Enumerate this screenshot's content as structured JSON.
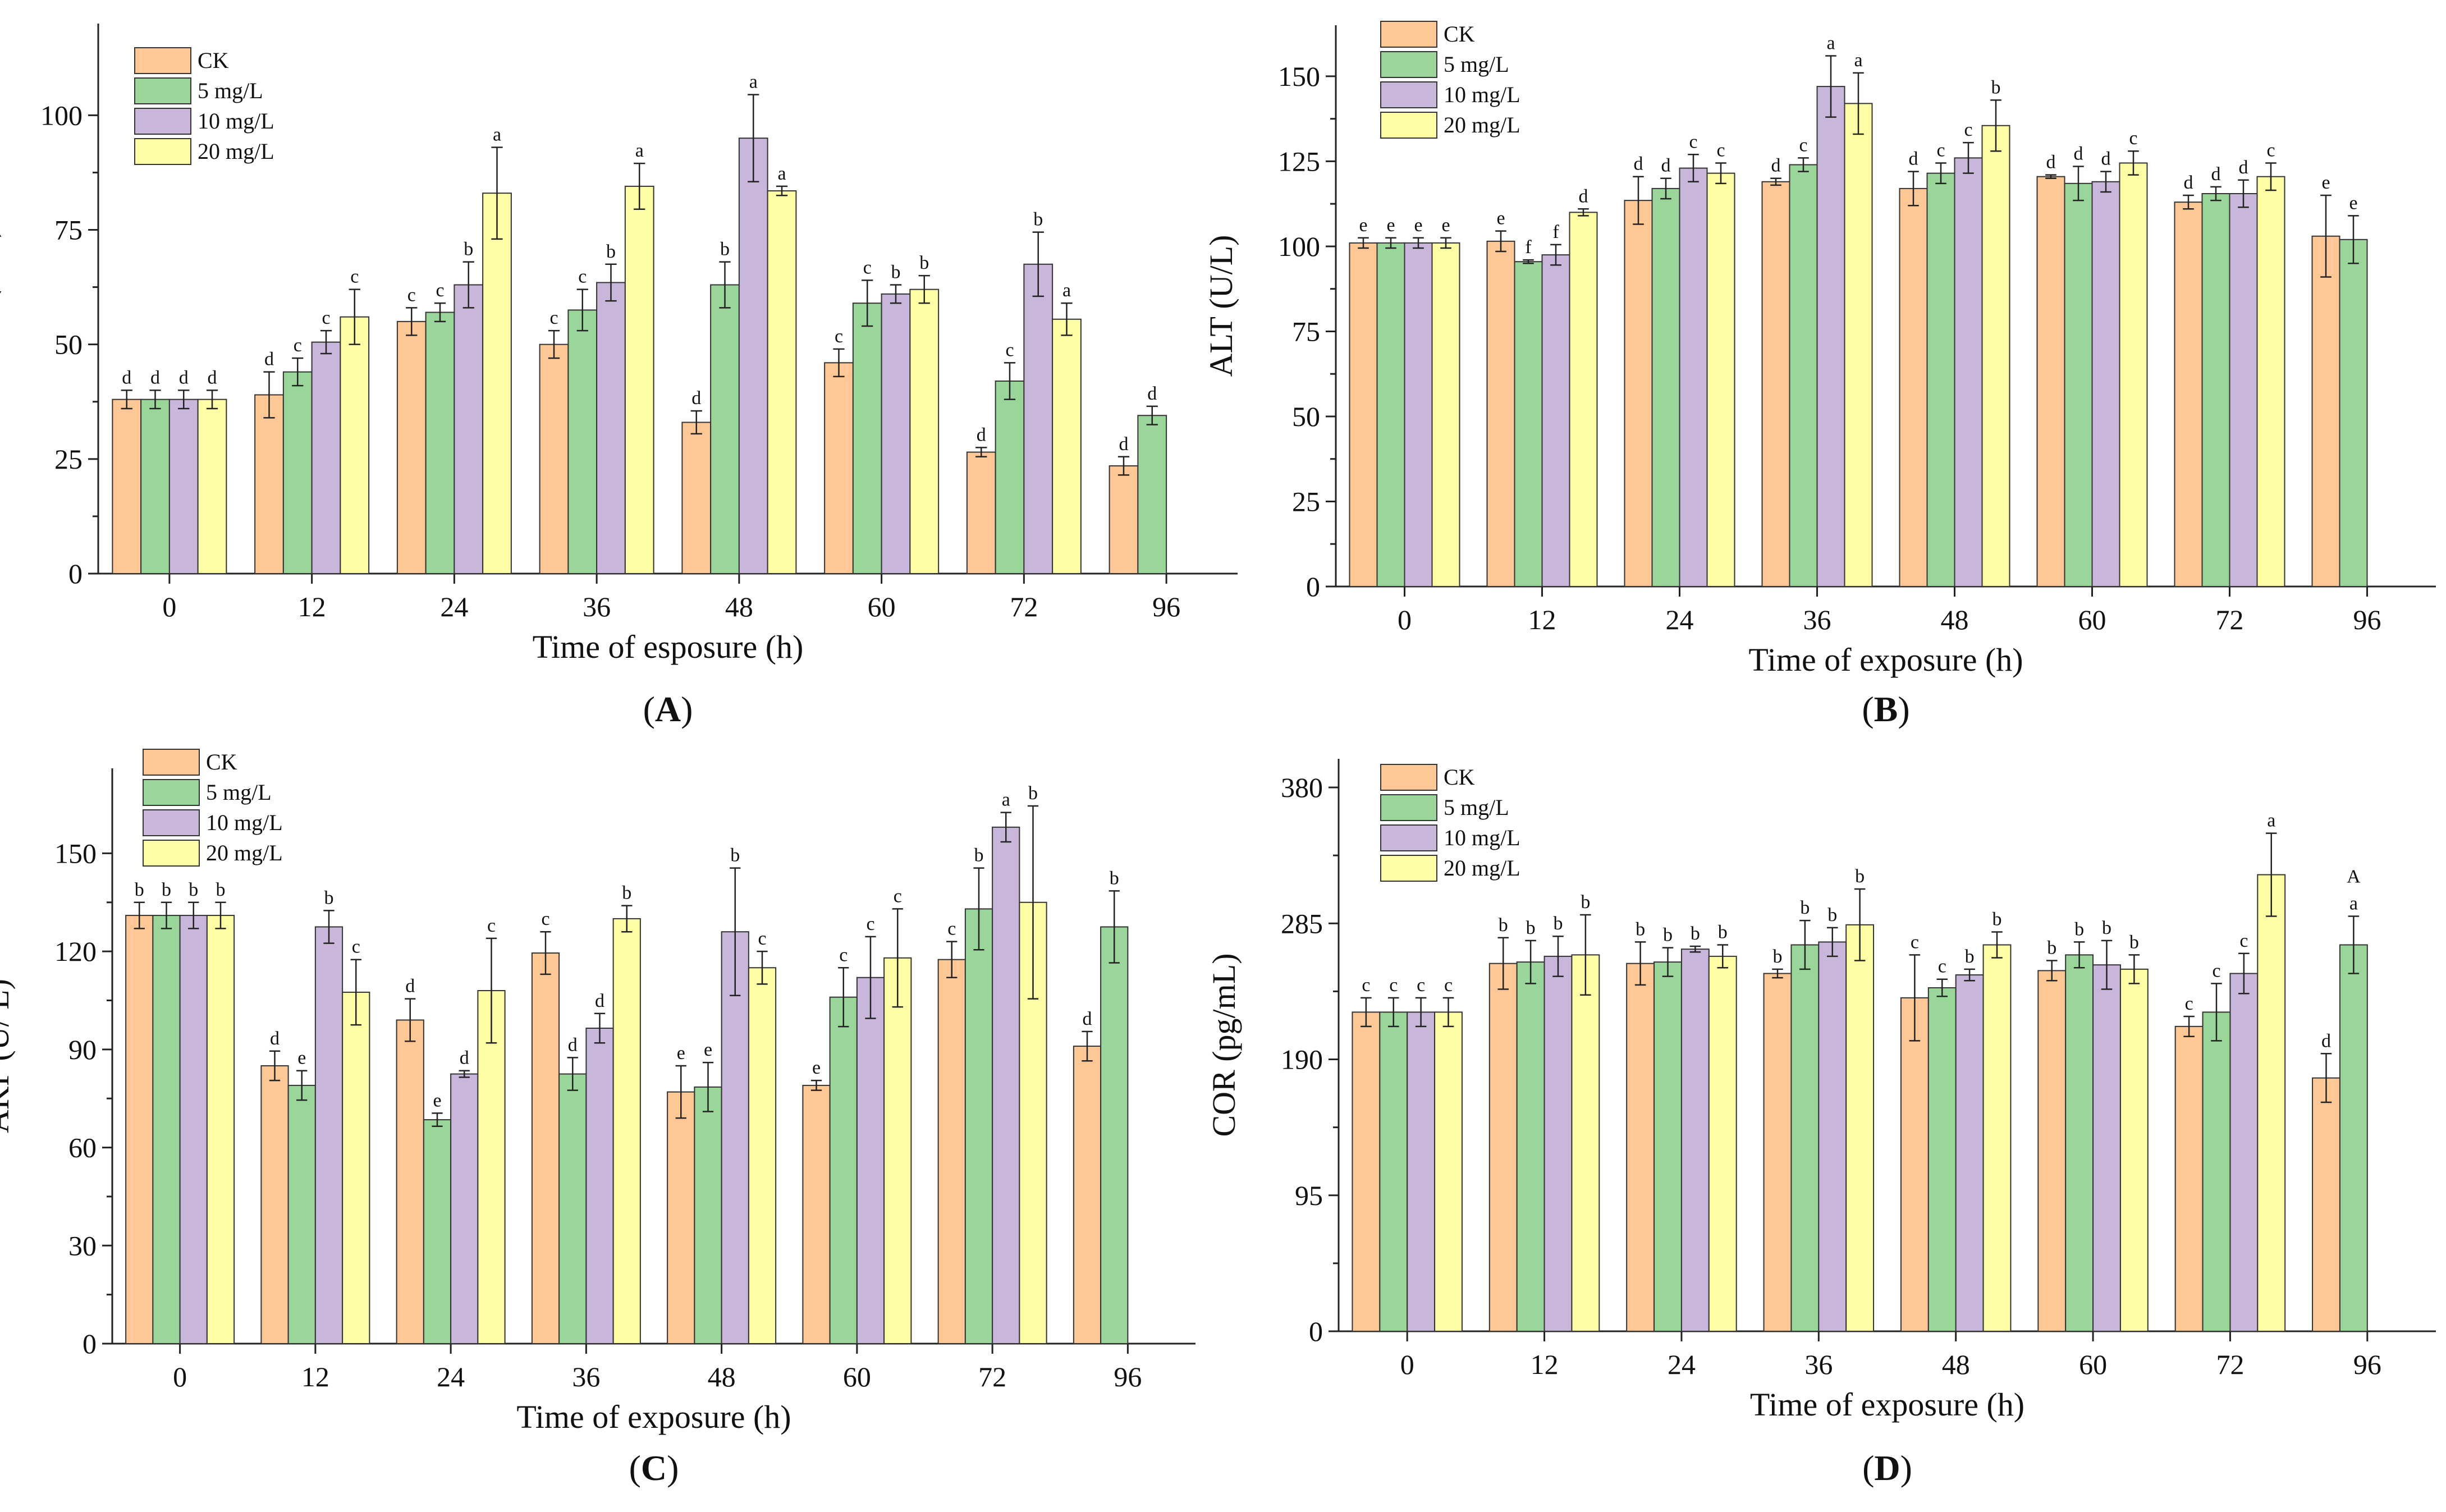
{
  "figure": {
    "type": "multi-panel bar chart",
    "series_names": [
      "CK",
      "5 mg/L",
      "10 mg/L",
      "20 mg/L"
    ],
    "colors": {
      "CK": "#FDC796",
      "5 mg/L": "#9AD59A",
      "10 mg/L": "#C8B7DA",
      "20 mg/L": "#FEFEA6",
      "axis": "#222222",
      "text": "#111111"
    }
  },
  "chart_data": [
    {
      "id": "A",
      "type": "bar",
      "panel_label": {
        "open": "(",
        "letter": "A",
        "close": ")"
      },
      "xlabel": "Time of esposure (h)",
      "ylabel": "AST (U/L)",
      "ylim": [
        0,
        120
      ],
      "yticks": [
        0,
        25,
        50,
        75,
        100
      ],
      "categories": [
        "0",
        "12",
        "24",
        "36",
        "48",
        "60",
        "72",
        "96"
      ],
      "series": [
        {
          "name": "CK",
          "values": [
            38,
            39,
            55,
            50,
            33,
            46,
            26.5,
            23.5
          ],
          "errors": [
            2,
            5,
            3,
            3,
            2.5,
            3,
            1,
            2
          ],
          "labels": [
            "d",
            "d",
            "c",
            "c",
            "d",
            "c",
            "d",
            "d"
          ]
        },
        {
          "name": "5 mg/L",
          "values": [
            38,
            44,
            57,
            57.5,
            63,
            59,
            42,
            34.5
          ],
          "errors": [
            2,
            3,
            2,
            4.5,
            5,
            5,
            4,
            2
          ],
          "labels": [
            "d",
            "c",
            "c",
            "c",
            "b",
            "c",
            "c",
            "d"
          ]
        },
        {
          "name": "10 mg/L",
          "values": [
            38,
            50.5,
            63,
            63.5,
            95,
            61,
            67.5,
            null
          ],
          "errors": [
            2,
            2.5,
            5,
            4,
            9.5,
            2,
            7,
            null
          ],
          "labels": [
            "d",
            "c",
            "b",
            "b",
            "a",
            "b",
            "b",
            ""
          ]
        },
        {
          "name": "20 mg/L",
          "values": [
            38,
            56,
            83,
            84.5,
            83.5,
            62,
            55.5,
            null
          ],
          "errors": [
            2,
            6,
            10,
            5,
            1,
            3,
            3.5,
            null
          ],
          "labels": [
            "d",
            "c",
            "a",
            "a",
            "a",
            "b",
            "a",
            ""
          ]
        }
      ]
    },
    {
      "id": "B",
      "type": "bar",
      "panel_label": {
        "open": "(",
        "letter": "B",
        "close": ")"
      },
      "xlabel": "Time of exposure (h)",
      "ylabel": "ALT (U/L)",
      "ylim": [
        0,
        165
      ],
      "yticks": [
        0,
        25,
        50,
        75,
        100,
        125,
        150
      ],
      "categories": [
        "0",
        "12",
        "24",
        "36",
        "48",
        "60",
        "72",
        "96"
      ],
      "series": [
        {
          "name": "CK",
          "values": [
            101,
            101.5,
            113.5,
            119,
            117,
            120.5,
            113,
            103
          ],
          "errors": [
            1.5,
            3,
            7,
            1,
            5,
            0.5,
            2,
            12
          ],
          "labels": [
            "e",
            "e",
            "d",
            "d",
            "d",
            "d",
            "d",
            "e"
          ]
        },
        {
          "name": "5 mg/L",
          "values": [
            101,
            95.5,
            117,
            124,
            121.5,
            118.5,
            115.5,
            102
          ],
          "errors": [
            1.5,
            0.5,
            3,
            2,
            3,
            5,
            2,
            7
          ],
          "labels": [
            "e",
            "f",
            "d",
            "c",
            "c",
            "d",
            "d",
            "e"
          ]
        },
        {
          "name": "10 mg/L",
          "values": [
            101,
            97.5,
            123,
            147,
            126,
            119,
            115.5,
            null
          ],
          "errors": [
            1.5,
            3,
            4,
            9,
            4.5,
            3,
            4,
            null
          ],
          "labels": [
            "e",
            "f",
            "c",
            "a",
            "c",
            "d",
            "d",
            ""
          ]
        },
        {
          "name": "20 mg/L",
          "values": [
            101,
            110,
            121.5,
            142,
            135.5,
            124.5,
            120.5,
            null
          ],
          "errors": [
            1.5,
            1,
            3,
            9,
            7.5,
            3.5,
            4,
            null
          ],
          "labels": [
            "e",
            "d",
            "c",
            "a",
            "b",
            "c",
            "c",
            ""
          ]
        }
      ]
    },
    {
      "id": "C",
      "type": "bar",
      "panel_label": {
        "open": "(",
        "letter": "C",
        "close": ")"
      },
      "xlabel": "Time of exposure (h)",
      "ylabel": "AKP (U/ L)",
      "ylim": [
        0,
        176
      ],
      "yticks": [
        0,
        30,
        60,
        90,
        120,
        150
      ],
      "categories": [
        "0",
        "12",
        "24",
        "36",
        "48",
        "60",
        "72",
        "96"
      ],
      "series": [
        {
          "name": "CK",
          "values": [
            131,
            85,
            99,
            119.5,
            77,
            79,
            117.5,
            91
          ],
          "errors": [
            4,
            4.5,
            6.5,
            6.5,
            8,
            1.5,
            5.5,
            4.5
          ],
          "labels": [
            "b",
            "d",
            "d",
            "c",
            "e",
            "e",
            "c",
            "d"
          ]
        },
        {
          "name": "5 mg/L",
          "values": [
            131,
            79,
            68.5,
            82.5,
            78.5,
            106,
            133,
            127.5
          ],
          "errors": [
            4,
            4.5,
            2,
            5,
            7.5,
            9,
            12.5,
            11
          ],
          "labels": [
            "b",
            "e",
            "e",
            "d",
            "e",
            "c",
            "b",
            "b"
          ]
        },
        {
          "name": "10 mg/L",
          "values": [
            131,
            127.5,
            82.5,
            96.5,
            126,
            112,
            158,
            null
          ],
          "errors": [
            4,
            5,
            1,
            4.5,
            19.5,
            12.5,
            4.5,
            null
          ],
          "labels": [
            "b",
            "b",
            "d",
            "d",
            "b",
            "c",
            "a",
            ""
          ]
        },
        {
          "name": "20 mg/L",
          "values": [
            131,
            107.5,
            108,
            130,
            115,
            118,
            135,
            null
          ],
          "errors": [
            4,
            10,
            16,
            4,
            5,
            15,
            29.5,
            null
          ],
          "labels": [
            "b",
            "c",
            "c",
            "b",
            "c",
            "c",
            "b",
            ""
          ]
        }
      ]
    },
    {
      "id": "D",
      "type": "bar",
      "panel_label": {
        "open": "(",
        "letter": "D",
        "close": ")"
      },
      "xlabel": "Time of exposure (h)",
      "ylabel": "COR (pg/mL)",
      "ylim": [
        0,
        400
      ],
      "yticks": [
        0,
        95,
        190,
        285,
        380
      ],
      "categories": [
        "0",
        "12",
        "24",
        "36",
        "48",
        "60",
        "72",
        "96"
      ],
      "series": [
        {
          "name": "CK",
          "values": [
            223,
            257,
            257,
            250,
            233,
            252,
            213,
            177
          ],
          "errors": [
            10,
            18,
            15,
            3,
            30,
            7,
            7,
            17
          ],
          "labels": [
            "c",
            "b",
            "b",
            "b",
            "c",
            "b",
            "c",
            "d"
          ]
        },
        {
          "name": "5 mg/L",
          "values": [
            223,
            258,
            258,
            270,
            240,
            263,
            223,
            270
          ],
          "errors": [
            10,
            15,
            10,
            17,
            6,
            9,
            20,
            20
          ],
          "labels": [
            "c",
            "b",
            "b",
            "b",
            "c",
            "b",
            "c",
            "a"
          ]
        },
        {
          "name": "10 mg/L",
          "values": [
            223,
            262,
            267,
            272,
            249,
            256,
            250,
            null
          ],
          "errors": [
            10,
            14,
            2,
            10,
            4,
            17,
            14,
            null
          ],
          "labels": [
            "c",
            "b",
            "b",
            "b",
            "b",
            "b",
            "c",
            ""
          ]
        },
        {
          "name": "20 mg/L",
          "values": [
            223,
            263,
            262,
            284,
            270,
            253,
            319,
            null
          ],
          "errors": [
            10,
            28,
            8,
            25,
            9,
            10,
            29,
            null
          ],
          "labels": [
            "c",
            "b",
            "b",
            "b",
            "b",
            "b",
            "a",
            ""
          ]
        }
      ],
      "annotations": [
        {
          "text": "A",
          "category": "96",
          "series": "5 mg/L"
        }
      ]
    }
  ]
}
